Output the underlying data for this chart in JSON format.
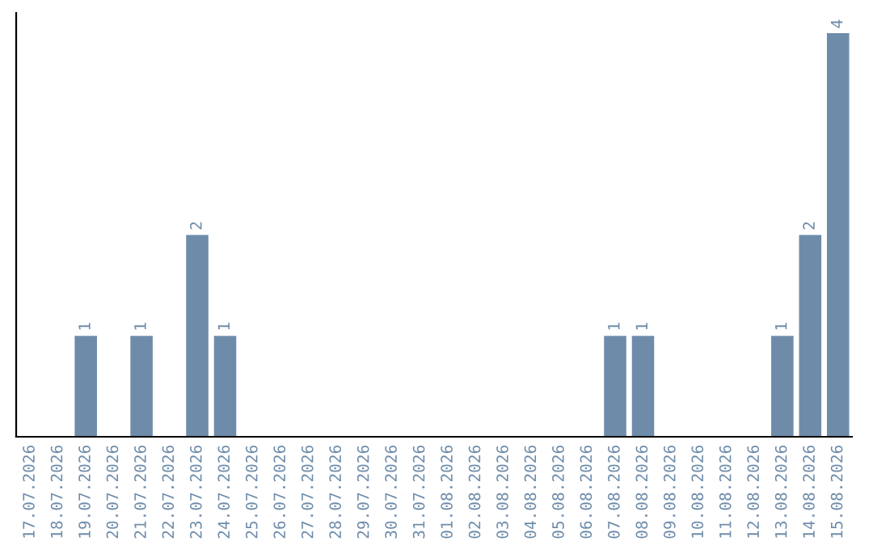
{
  "chart_data": {
    "type": "bar",
    "categories": [
      "17.07.2026",
      "18.07.2026",
      "19.07.2026",
      "20.07.2026",
      "21.07.2026",
      "22.07.2026",
      "23.07.2026",
      "24.07.2026",
      "25.07.2026",
      "26.07.2026",
      "27.07.2026",
      "28.07.2026",
      "29.07.2026",
      "30.07.2026",
      "31.07.2026",
      "01.08.2026",
      "02.08.2026",
      "03.08.2026",
      "04.08.2026",
      "05.08.2026",
      "06.08.2026",
      "07.08.2026",
      "08.08.2026",
      "09.08.2026",
      "10.08.2026",
      "11.08.2026",
      "12.08.2026",
      "13.08.2026",
      "14.08.2026",
      "15.08.2026"
    ],
    "values": [
      0,
      0,
      1,
      0,
      1,
      0,
      2,
      1,
      0,
      0,
      0,
      0,
      0,
      0,
      0,
      0,
      0,
      0,
      0,
      0,
      0,
      1,
      1,
      0,
      0,
      0,
      0,
      1,
      2,
      4
    ],
    "value_labels": [
      null,
      null,
      "1",
      null,
      "1",
      null,
      "2",
      "1",
      null,
      null,
      null,
      null,
      null,
      null,
      null,
      null,
      null,
      null,
      null,
      null,
      null,
      "1",
      "1",
      null,
      null,
      null,
      null,
      "1",
      "2",
      "4"
    ],
    "color": "#6e8caa",
    "grid": false,
    "legend": false
  }
}
